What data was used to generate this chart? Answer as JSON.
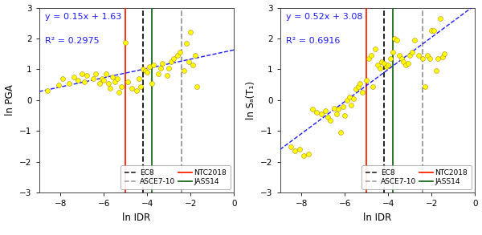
{
  "subplot_a": {
    "title_eq": "y = 0.15x + 1.63",
    "title_r2": "R² = 0.2975",
    "slope": 0.15,
    "intercept": 1.63,
    "xlabel": "ln IDR",
    "ylabel": "ln PGA",
    "xlim": [
      -9,
      0
    ],
    "ylim": [
      -3,
      3
    ],
    "xticks": [
      -8,
      -6,
      -4,
      -2,
      0
    ],
    "yticks": [
      -3,
      -2,
      -1,
      0,
      1,
      2,
      3
    ],
    "vline_NTC2018": -5.0,
    "vline_EC8": -4.2,
    "vline_JASS14": -3.8,
    "vline_ASCE710": -2.4,
    "scatter_x": [
      -8.6,
      -8.1,
      -7.9,
      -7.6,
      -7.4,
      -7.2,
      -7.0,
      -6.9,
      -6.8,
      -6.5,
      -6.4,
      -6.2,
      -6.1,
      -6.0,
      -5.9,
      -5.8,
      -5.7,
      -5.6,
      -5.5,
      -5.4,
      -5.3,
      -5.2,
      -5.0,
      -4.9,
      -4.7,
      -4.5,
      -4.4,
      -4.3,
      -4.2,
      -4.1,
      -4.0,
      -3.9,
      -3.8,
      -3.7,
      -3.5,
      -3.4,
      -3.3,
      -3.1,
      -3.0,
      -2.9,
      -2.8,
      -2.6,
      -2.5,
      -2.3,
      -2.2,
      -2.1,
      -2.0,
      -1.9,
      -1.8,
      -1.7
    ],
    "scatter_y": [
      0.3,
      0.5,
      0.7,
      0.55,
      0.75,
      0.65,
      0.85,
      0.6,
      0.8,
      0.7,
      0.85,
      0.55,
      0.7,
      0.65,
      0.85,
      0.55,
      0.4,
      0.75,
      0.6,
      0.7,
      0.25,
      0.45,
      1.87,
      0.6,
      0.4,
      0.3,
      0.7,
      0.45,
      1.0,
      0.95,
      0.9,
      1.1,
      0.55,
      1.15,
      0.85,
      1.05,
      1.2,
      0.8,
      1.05,
      1.25,
      1.35,
      1.45,
      1.55,
      0.95,
      1.85,
      1.25,
      2.2,
      1.15,
      1.45,
      0.45
    ]
  },
  "subplot_b": {
    "title_eq": "y = 0.52x + 3.08",
    "title_r2": "R² = 0.6916",
    "slope": 0.52,
    "intercept": 3.08,
    "xlabel": "ln IDR",
    "ylabel": "ln Sₐ(T₁)",
    "xlim": [
      -9,
      0
    ],
    "ylim": [
      -3,
      3
    ],
    "xticks": [
      -8,
      -6,
      -4,
      -2,
      0
    ],
    "yticks": [
      -3,
      -2,
      -1,
      0,
      1,
      2,
      3
    ],
    "vline_NTC2018": -5.0,
    "vline_EC8": -4.2,
    "vline_JASS14": -3.8,
    "vline_ASCE710": -2.4,
    "scatter_x": [
      -8.5,
      -8.3,
      -8.1,
      -7.9,
      -7.7,
      -7.5,
      -7.3,
      -7.1,
      -6.9,
      -6.8,
      -6.7,
      -6.5,
      -6.4,
      -6.3,
      -6.2,
      -6.1,
      -6.0,
      -5.9,
      -5.8,
      -5.7,
      -5.6,
      -5.5,
      -5.4,
      -5.3,
      -5.2,
      -5.0,
      -4.9,
      -4.8,
      -4.7,
      -4.6,
      -4.5,
      -4.4,
      -4.3,
      -4.2,
      -4.1,
      -4.0,
      -3.9,
      -3.8,
      -3.7,
      -3.6,
      -3.5,
      -3.4,
      -3.3,
      -3.2,
      -3.1,
      -3.0,
      -2.9,
      -2.8,
      -2.6,
      -2.4,
      -2.3,
      -2.2,
      -2.1,
      -2.0,
      -1.9,
      -1.8,
      -1.7,
      -1.6,
      -1.5,
      -1.4
    ],
    "scatter_y": [
      -1.5,
      -1.65,
      -1.6,
      -1.8,
      -1.75,
      -0.3,
      -0.4,
      -0.45,
      -0.35,
      -0.55,
      -0.65,
      -0.25,
      -0.45,
      -0.3,
      -1.05,
      -0.2,
      -0.5,
      0.0,
      0.1,
      -0.15,
      0.05,
      0.35,
      0.45,
      0.55,
      0.25,
      0.65,
      1.35,
      1.45,
      0.45,
      1.65,
      1.15,
      1.05,
      1.25,
      1.2,
      1.1,
      1.15,
      1.35,
      1.55,
      2.0,
      1.95,
      1.45,
      1.35,
      1.25,
      1.15,
      1.2,
      1.45,
      1.55,
      1.95,
      1.45,
      1.35,
      0.45,
      1.45,
      1.35,
      2.25,
      2.25,
      0.95,
      1.35,
      2.65,
      1.4,
      1.5
    ]
  },
  "scatter_color": "#ffff00",
  "scatter_edgecolor": "#b8860b",
  "scatter_size": 18,
  "regression_color": "#1a1aff",
  "NTC2018_color": "#ff2200",
  "EC8_color": "#111111",
  "JASS14_color": "#1a6b1a",
  "ASCE710_color": "#999999",
  "label_color": "#1a1aff",
  "label_fontsize": 8,
  "tick_fontsize": 7.5,
  "axis_label_fontsize": 8.5
}
